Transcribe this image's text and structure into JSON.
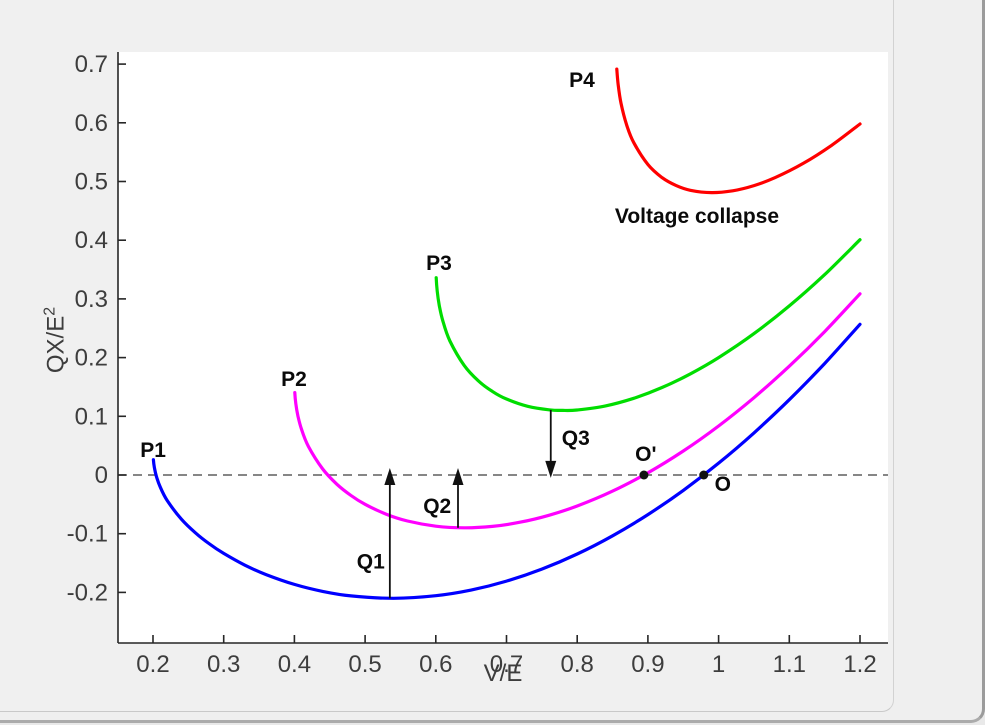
{
  "figure": {
    "background": "#f0f0f0",
    "plot_background": "#ffffff",
    "axis_color": "#262626",
    "tick_label_color": "#3d3d3d"
  },
  "chart_data": {
    "type": "line",
    "title": "",
    "xlabel": "V/E",
    "ylabel_base": "QX/E",
    "ylabel_exponent": "2",
    "xlim": [
      0.1505,
      1.2396
    ],
    "ylim": [
      -0.2862,
      0.7206
    ],
    "grid": false,
    "legend": "none",
    "xticks": {
      "values": [
        0.2,
        0.3,
        0.4,
        0.5,
        0.6,
        0.7,
        0.8,
        0.9,
        1.0,
        1.1,
        1.2
      ],
      "labels": [
        "0.2",
        "0.3",
        "0.4",
        "0.5",
        "0.6",
        "0.7",
        "0.8",
        "0.9",
        "1",
        "1.1",
        "1.2"
      ]
    },
    "yticks": {
      "values": [
        -0.2,
        -0.1,
        0.0,
        0.1,
        0.2,
        0.3,
        0.4,
        0.5,
        0.6,
        0.7
      ],
      "labels": [
        "-0.2",
        "-0.1",
        "0",
        "0.1",
        "0.2",
        "0.3",
        "0.4",
        "0.5",
        "0.6",
        "0.7"
      ]
    },
    "zero_line": {
      "y": 0,
      "style": "dashed",
      "color": "#5f5f5f"
    },
    "series": [
      {
        "name": "P1",
        "color": "#0000ff",
        "p": 0.2,
        "label": {
          "text": "P1",
          "x": 0.2001,
          "y": 0.0426
        },
        "points": [
          [
            0.2005,
            0.026
          ],
          [
            0.202,
            0.0125
          ],
          [
            0.205,
            -0.003
          ],
          [
            0.21,
            -0.0199
          ],
          [
            0.22,
            -0.0433
          ],
          [
            0.24,
            -0.0751
          ],
          [
            0.26,
            -0.0985
          ],
          [
            0.28,
            -0.1176
          ],
          [
            0.3,
            -0.1336
          ],
          [
            0.33,
            -0.1536
          ],
          [
            0.36,
            -0.1697
          ],
          [
            0.4,
            -0.1864
          ],
          [
            0.44,
            -0.1983
          ],
          [
            0.48,
            -0.206
          ],
          [
            0.54,
            -0.21
          ],
          [
            0.6,
            -0.2057
          ],
          [
            0.65,
            -0.196
          ],
          [
            0.7,
            -0.1808
          ],
          [
            0.75,
            -0.1603
          ],
          [
            0.8,
            -0.1346
          ],
          [
            0.85,
            -0.1036
          ],
          [
            0.9,
            -0.0675
          ],
          [
            0.95,
            -0.0262
          ],
          [
            1.0,
            0.0202
          ],
          [
            1.05,
            0.0717
          ],
          [
            1.1,
            0.1283
          ],
          [
            1.15,
            0.19
          ],
          [
            1.2,
            0.2568
          ]
        ]
      },
      {
        "name": "P2",
        "color": "#ff00ff",
        "p": 0.4,
        "label": {
          "text": "P2",
          "x": 0.3994,
          "y": 0.1636
        },
        "points": [
          [
            0.4005,
            0.1404
          ],
          [
            0.402,
            0.1216
          ],
          [
            0.405,
            0.1006
          ],
          [
            0.41,
            0.0781
          ],
          [
            0.42,
            0.0483
          ],
          [
            0.44,
            0.0103
          ],
          [
            0.46,
            -0.0156
          ],
          [
            0.48,
            -0.0349
          ],
          [
            0.5,
            -0.05
          ],
          [
            0.53,
            -0.0668
          ],
          [
            0.56,
            -0.0783
          ],
          [
            0.6,
            -0.0872
          ],
          [
            0.64,
            -0.09
          ],
          [
            0.68,
            -0.0875
          ],
          [
            0.72,
            -0.0803
          ],
          [
            0.76,
            -0.0686
          ],
          [
            0.8,
            -0.0528
          ],
          [
            0.85,
            -0.0275
          ],
          [
            0.9,
            0.0038
          ],
          [
            0.95,
            0.0408
          ],
          [
            1.0,
            0.0835
          ],
          [
            1.05,
            0.1317
          ],
          [
            1.1,
            0.1853
          ],
          [
            1.15,
            0.2443
          ],
          [
            1.2,
            0.3086
          ]
        ]
      },
      {
        "name": "P3",
        "color": "#00dd00",
        "p": 0.6,
        "label": {
          "text": "P3",
          "x": 0.6045,
          "y": 0.3612
        },
        "points": [
          [
            0.6005,
            0.3361
          ],
          [
            0.602,
            0.3134
          ],
          [
            0.605,
            0.2884
          ],
          [
            0.61,
            0.2621
          ],
          [
            0.62,
            0.2282
          ],
          [
            0.64,
            0.1869
          ],
          [
            0.66,
            0.1606
          ],
          [
            0.68,
            0.1424
          ],
          [
            0.7,
            0.1294
          ],
          [
            0.73,
            0.1171
          ],
          [
            0.76,
            0.1111
          ],
          [
            0.78,
            0.11
          ],
          [
            0.8,
            0.1108
          ],
          [
            0.84,
            0.1177
          ],
          [
            0.88,
            0.1307
          ],
          [
            0.92,
            0.149
          ],
          [
            0.96,
            0.1722
          ],
          [
            1.0,
            0.2
          ],
          [
            1.05,
            0.2408
          ],
          [
            1.1,
            0.288
          ],
          [
            1.15,
            0.3414
          ],
          [
            1.2,
            0.4008
          ]
        ]
      },
      {
        "name": "P4",
        "color": "#ff0000",
        "p": 0.855,
        "label": {
          "text": "P4",
          "x": 0.8068,
          "y": 0.6729
        },
        "points": [
          [
            0.856,
            0.6914
          ],
          [
            0.858,
            0.6645
          ],
          [
            0.862,
            0.6334
          ],
          [
            0.87,
            0.596
          ],
          [
            0.88,
            0.5661
          ],
          [
            0.9,
            0.529
          ],
          [
            0.92,
            0.5067
          ],
          [
            0.94,
            0.493
          ],
          [
            0.96,
            0.485
          ],
          [
            0.99,
            0.481
          ],
          [
            1.02,
            0.4842
          ],
          [
            1.05,
            0.493
          ],
          [
            1.08,
            0.5066
          ],
          [
            1.12,
            0.531
          ],
          [
            1.16,
            0.5617
          ],
          [
            1.2,
            0.598
          ]
        ]
      }
    ],
    "arrows": [
      {
        "label": "Q1",
        "x": 0.535,
        "y_from": -0.21,
        "y_to": 0.012,
        "direction": "up",
        "label_x": 0.508,
        "label_y": -0.147
      },
      {
        "label": "Q2",
        "x": 0.6314,
        "y_from": -0.0899,
        "y_to": 0.012,
        "direction": "up",
        "label_x": 0.602,
        "label_y": -0.053
      },
      {
        "label": "Q3",
        "x": 0.7626,
        "y_from": 0.1109,
        "y_to": -0.005,
        "direction": "down",
        "label_x": 0.798,
        "label_y": 0.063
      }
    ],
    "marker_points": [
      {
        "label": "O'",
        "x": 0.8944,
        "y": 0,
        "label_x": 0.897,
        "label_y": 0.036
      },
      {
        "label": "O",
        "x": 0.979,
        "y": 0,
        "label_x": 1.006,
        "label_y": -0.015
      }
    ],
    "annotations": [
      {
        "text": "Voltage collapse",
        "x": 0.9694,
        "y": 0.4412
      }
    ]
  }
}
